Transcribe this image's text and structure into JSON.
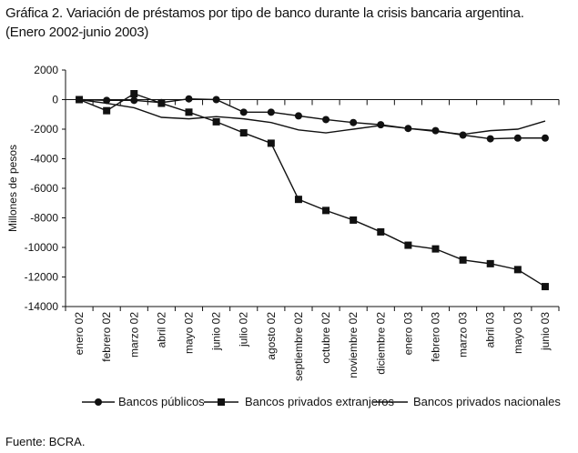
{
  "figure": {
    "title_line1": "Gráfica 2. Variación de préstamos por tipo de banco durante la crisis bancaria argentina.",
    "title_line2": "(Enero 2002-junio 2003)",
    "source": "Fuente: BCRA."
  },
  "chart_data": {
    "type": "line",
    "title": "Variación de préstamos por tipo de banco durante la crisis bancaria argentina. (Enero 2002-junio 2003)",
    "xlabel": "",
    "ylabel": "Millones de pesos",
    "ylim": [
      -14000,
      2000
    ],
    "yticks": [
      2000,
      0,
      -2000,
      -4000,
      -6000,
      -8000,
      -10000,
      -12000,
      -14000
    ],
    "ytick_labels": [
      "2000",
      "0",
      "-2000",
      "-4000",
      "-6000",
      "-8000",
      "-10000",
      "-12000",
      "-14000"
    ],
    "categories": [
      "enero 02",
      "febrero 02",
      "marzo 02",
      "abril 02",
      "mayo 02",
      "junio 02",
      "julio 02",
      "agosto 02",
      "septiembre 02",
      "octubre 02",
      "noviembre 02",
      "diciembre 02",
      "enero 03",
      "febrero 03",
      "marzo 03",
      "abril 03",
      "mayo 03",
      "junio 03"
    ],
    "series": [
      {
        "name": "Bancos públicos",
        "marker": "circle",
        "values": [
          0,
          -50,
          -50,
          -200,
          50,
          0,
          -850,
          -850,
          -1100,
          -1350,
          -1550,
          -1700,
          -1950,
          -2100,
          -2400,
          -2650,
          -2600,
          -2600
        ]
      },
      {
        "name": "Bancos privados extranjeros",
        "marker": "square",
        "values": [
          0,
          -750,
          400,
          -250,
          -850,
          -1500,
          -2250,
          -2950,
          -6750,
          -7500,
          -8150,
          -8950,
          -9850,
          -10100,
          -10850,
          -11100,
          -11500,
          -12650
        ]
      },
      {
        "name": "Bancos privados nacionales",
        "marker": "none",
        "values": [
          0,
          -250,
          -550,
          -1200,
          -1300,
          -1150,
          -1300,
          -1550,
          -2050,
          -2250,
          -2000,
          -1750,
          -1950,
          -2150,
          -2350,
          -2100,
          -2000,
          -1450
        ]
      }
    ],
    "legend_position": "bottom",
    "grid": false
  }
}
